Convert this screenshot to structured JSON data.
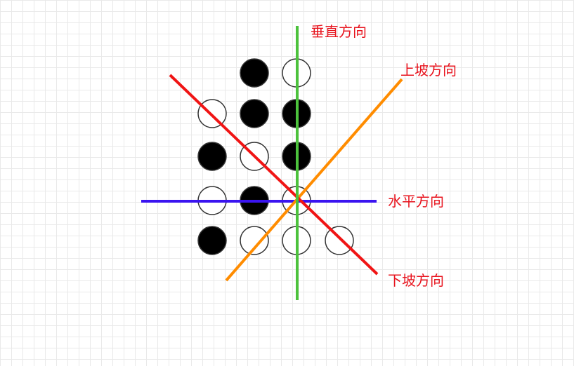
{
  "labels": {
    "vertical": "垂直方向",
    "up_slope": "上坡方向",
    "horizontal": "水平方向",
    "down_slope": "下坡方向"
  },
  "colors": {
    "vertical": "#4cc23c",
    "up_slope": "#ff8c00",
    "horizontal": "#3a14f0",
    "down_slope": "#f01414",
    "label": "#e8141e",
    "black_stone": "#000000",
    "white_stone": "#ffffff",
    "stone_outline": "#333333"
  },
  "board": {
    "rows": [
      [
        "",
        "black",
        "white",
        ""
      ],
      [
        "white",
        "black",
        "black",
        ""
      ],
      [
        "black",
        "white",
        "black",
        ""
      ],
      [
        "white",
        "black",
        "white",
        ""
      ],
      [
        "black",
        "white",
        "white",
        "white"
      ]
    ]
  }
}
